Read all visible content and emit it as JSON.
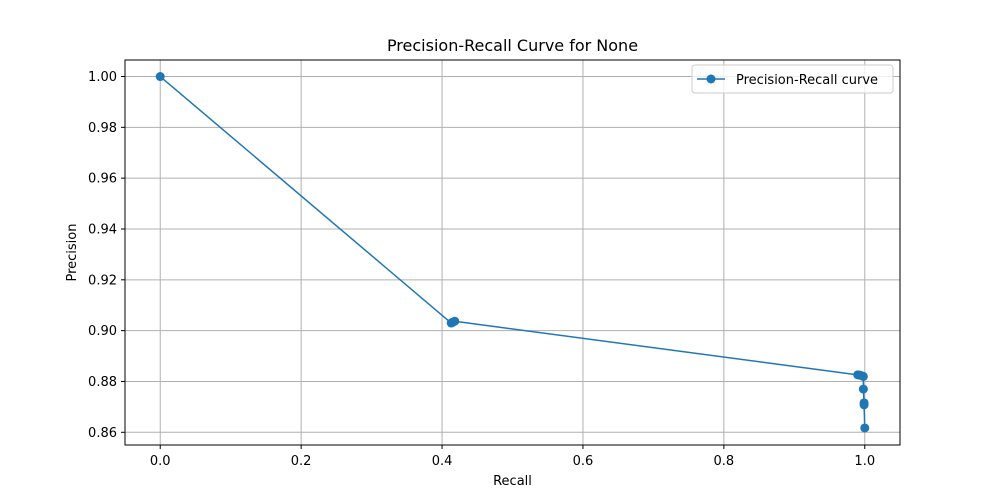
{
  "chart_data": {
    "type": "line",
    "title": "Precision-Recall Curve for None",
    "xlabel": "Recall",
    "ylabel": "Precision",
    "xlim": [
      -0.05,
      1.05
    ],
    "ylim": [
      0.855,
      1.0065
    ],
    "x_ticks": [
      0.0,
      0.2,
      0.4,
      0.6,
      0.8,
      1.0
    ],
    "x_tick_labels": [
      "0.0",
      "0.2",
      "0.4",
      "0.6",
      "0.8",
      "1.0"
    ],
    "y_ticks": [
      0.86,
      0.88,
      0.9,
      0.92,
      0.94,
      0.96,
      0.98,
      1.0
    ],
    "y_tick_labels": [
      "0.86",
      "0.88",
      "0.90",
      "0.92",
      "0.94",
      "0.96",
      "0.98",
      "1.00"
    ],
    "grid": true,
    "legend_position": "top-right",
    "series": [
      {
        "name": "Precision-Recall curve",
        "color": "#1f77b4",
        "marker": "circle",
        "points": [
          {
            "x": 0.0,
            "y": 1.0
          },
          {
            "x": 0.413,
            "y": 0.903
          },
          {
            "x": 0.415,
            "y": 0.9033
          },
          {
            "x": 0.418,
            "y": 0.9037
          },
          {
            "x": 0.99,
            "y": 0.8826
          },
          {
            "x": 0.993,
            "y": 0.8825
          },
          {
            "x": 0.996,
            "y": 0.8822
          },
          {
            "x": 0.998,
            "y": 0.882
          },
          {
            "x": 0.998,
            "y": 0.877
          },
          {
            "x": 0.999,
            "y": 0.8716
          },
          {
            "x": 0.999,
            "y": 0.8708
          },
          {
            "x": 1.0,
            "y": 0.8617
          }
        ]
      }
    ]
  }
}
